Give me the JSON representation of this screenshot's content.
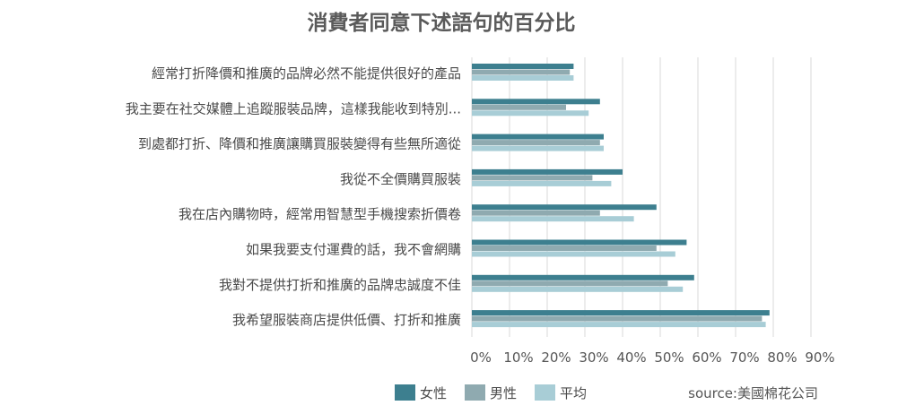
{
  "chart_data": {
    "type": "bar",
    "orientation": "horizontal",
    "title": "消費者同意下述語句的百分比",
    "categories": [
      "經常打折降價和推廣的品牌必然不能提供很好的產品",
      "我主要在社交媒體上追蹤服裝品牌，這樣我能收到特別...",
      "到處都打折、降價和推廣讓購買服裝變得有些無所適從",
      "我從不全價購買服裝",
      "我在店內購物時，經常用智慧型手機搜索折價卷",
      "如果我要支付運費的話，我不會網購",
      "我對不提供打折和推廣的品牌忠誠度不佳",
      "我希望服裝商店提供低價、打折和推廣"
    ],
    "series": [
      {
        "name": "女性",
        "color": "#3d7f8f",
        "values": [
          27,
          34,
          35,
          40,
          49,
          57,
          59,
          79
        ]
      },
      {
        "name": "男性",
        "color": "#8faab0",
        "values": [
          26,
          25,
          34,
          32,
          34,
          49,
          52,
          77
        ]
      },
      {
        "name": "平均",
        "color": "#a8cdd6",
        "values": [
          27,
          31,
          35,
          37,
          43,
          54,
          56,
          78
        ]
      }
    ],
    "x_ticks": [
      "0%",
      "10%",
      "20%",
      "30%",
      "40%",
      "50%",
      "60%",
      "70%",
      "80%",
      "90%"
    ],
    "xlim": [
      0,
      90
    ],
    "grid": true,
    "legend_position": "bottom",
    "source": "source:美國棉花公司"
  }
}
